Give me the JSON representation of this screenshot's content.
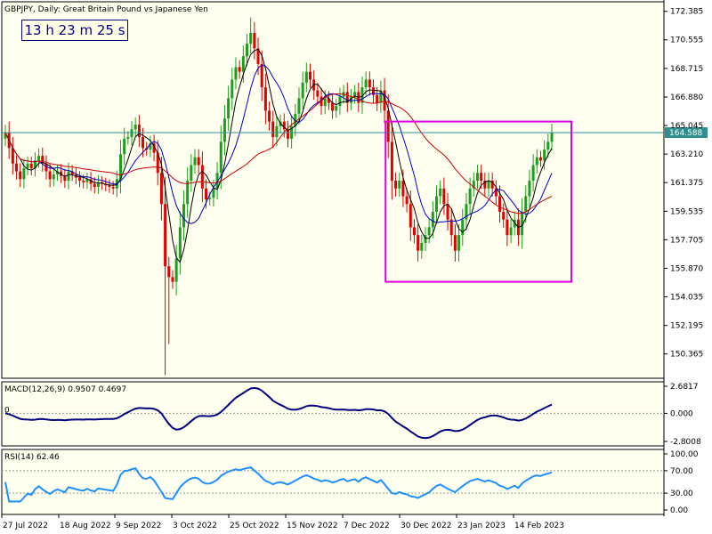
{
  "title": "GBPJPY, Daily:  Great Britain Pound vs Japanese Yen",
  "timer": "13 h 23 m 25 s",
  "current_price_label": "164.588",
  "colors": {
    "background": "#fffff0",
    "bull": "#1aa01a",
    "bear": "#e00000",
    "ma_fast": "#000000",
    "ma_mid": "#0000cc",
    "ma_slow": "#cc0000",
    "price_line": "#2f8f8f",
    "highlight_box": "#e000e0",
    "macd": "#000080",
    "rsi": "#1e90ff"
  },
  "chart_data": [
    {
      "type": "candlestick",
      "title": "GBPJPY, Daily:  Great Britain Pound vs Japanese Yen",
      "x_tick_labels": [
        "27 Jul 2022",
        "18 Aug 2022",
        "9 Sep 2022",
        "3 Oct 2022",
        "25 Oct 2022",
        "15 Nov 2022",
        "7 Dec 2022",
        "30 Dec 2022",
        "23 Jan 2023",
        "14 Feb 2023"
      ],
      "y_tick_labels": [
        "172.385",
        "170.555",
        "168.715",
        "166.880",
        "165.045",
        "163.210",
        "161.375",
        "159.535",
        "157.705",
        "155.870",
        "154.035",
        "152.195",
        "150.365"
      ],
      "ylim": [
        148.8,
        173.0
      ],
      "current_price": 164.588,
      "close_series": [
        164.6,
        163.6,
        162.6,
        162.1,
        161.6,
        162.3,
        162.6,
        162.3,
        162.8,
        163.1,
        162.6,
        162.1,
        161.6,
        161.9,
        162.1,
        161.8,
        161.5,
        162.1,
        161.9,
        161.7,
        161.5,
        161.4,
        161.6,
        161.3,
        161.1,
        161.4,
        161.3,
        161.2,
        161.1,
        161.0,
        161.6,
        163.2,
        164.2,
        164.3,
        164.8,
        165.1,
        164.3,
        163.6,
        163.5,
        163.9,
        163.3,
        162.0,
        160.0,
        156.0,
        155.3,
        155.0,
        156.5,
        158.5,
        160.0,
        161.5,
        162.5,
        163.0,
        162.5,
        161.0,
        160.3,
        160.4,
        161.0,
        162.0,
        164.0,
        165.5,
        166.8,
        168.0,
        168.8,
        168.5,
        169.5,
        170.3,
        171.0,
        170.0,
        169.0,
        167.5,
        166.0,
        165.3,
        164.3,
        165.0,
        165.3,
        164.8,
        164.2,
        165.0,
        165.8,
        166.8,
        167.8,
        168.5,
        168.0,
        167.3,
        166.9,
        166.3,
        166.8,
        166.5,
        166.0,
        166.3,
        166.9,
        167.2,
        166.5,
        166.9,
        167.2,
        166.5,
        167.5,
        168.0,
        167.5,
        167.0,
        166.5,
        167.3,
        166.0,
        164.0,
        161.5,
        161.0,
        161.5,
        160.5,
        160.0,
        158.5,
        158.0,
        157.0,
        157.5,
        158.0,
        158.5,
        159.5,
        160.5,
        161.0,
        160.0,
        159.0,
        158.0,
        157.0,
        158.0,
        159.0,
        160.0,
        161.0,
        161.5,
        162.0,
        161.5,
        161.0,
        161.5,
        161.0,
        160.5,
        159.5,
        159.0,
        158.0,
        158.5,
        159.0,
        158.0,
        159.5,
        160.5,
        161.5,
        162.5,
        163.0,
        162.8,
        163.5,
        164.0,
        164.6
      ],
      "macd": {
        "label": "MACD(12,26,9) 0.9507 0.4697",
        "y_tick_labels": [
          "2.6817",
          "0.000",
          "-2.8008"
        ],
        "zero_label": "0",
        "ylim": [
          -3.2,
          3.1
        ],
        "main_value": 0.9507,
        "signal_value": 0.4697
      },
      "rsi": {
        "label": "RSI(14) 62.46",
        "y_tick_labels": [
          "100.00",
          "70.00",
          "30.00",
          "0.00"
        ],
        "levels": [
          70,
          30
        ],
        "ylim": [
          0,
          100
        ],
        "value": 62.46
      }
    }
  ]
}
